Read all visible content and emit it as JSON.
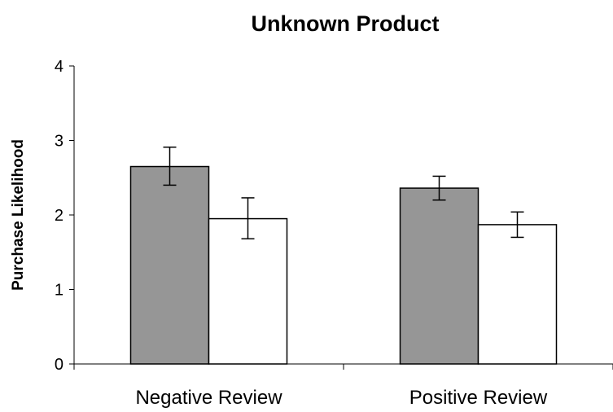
{
  "chart_data": {
    "type": "bar",
    "title": "Unknown Product",
    "xlabel": "",
    "ylabel": "Purchase Likelihood",
    "categories": [
      "Negative Review",
      "Positive Review"
    ],
    "ylim": [
      0,
      4
    ],
    "yticks": [
      "0",
      "1",
      "2",
      "3",
      "4"
    ],
    "grid": false,
    "legend": "none",
    "series": [
      {
        "color": "#969696",
        "values": [
          2.65,
          2.36
        ],
        "error_low": [
          2.4,
          2.2
        ],
        "error_high": [
          2.91,
          2.52
        ]
      },
      {
        "color": "#ffffff",
        "values": [
          1.95,
          1.87
        ],
        "error_low": [
          1.68,
          1.7
        ],
        "error_high": [
          2.23,
          2.04
        ]
      }
    ]
  }
}
